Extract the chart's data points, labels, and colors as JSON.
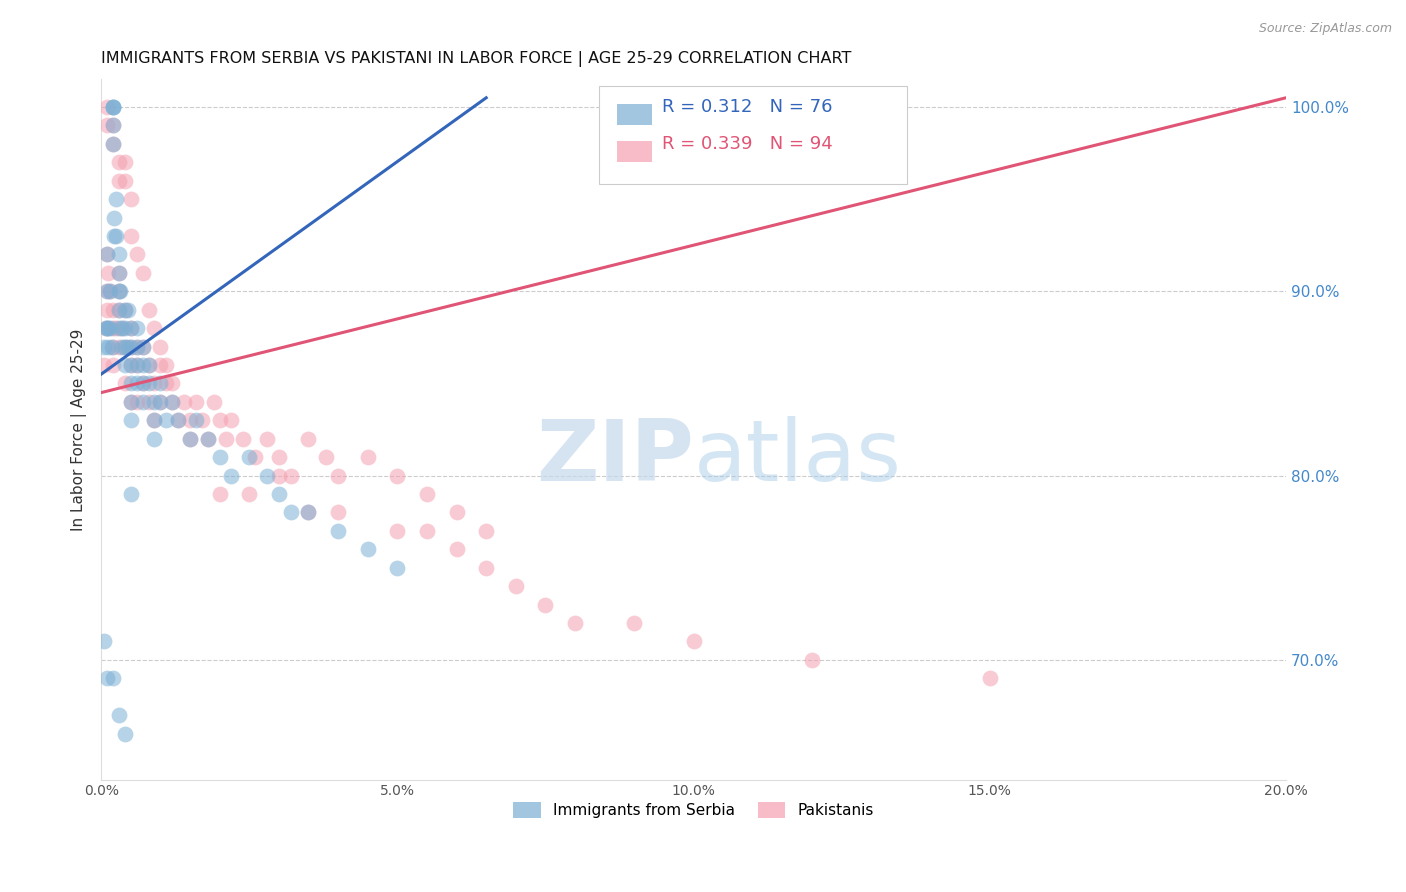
{
  "title": "IMMIGRANTS FROM SERBIA VS PAKISTANI IN LABOR FORCE | AGE 25-29 CORRELATION CHART",
  "source": "Source: ZipAtlas.com",
  "ylabel": "In Labor Force | Age 25-29",
  "serbia_R": 0.312,
  "serbia_N": 76,
  "pakistan_R": 0.339,
  "pakistan_N": 94,
  "serbia_color": "#7BAFD4",
  "pakistan_color": "#F4A0B0",
  "serbia_line_color": "#3366BB",
  "pakistan_line_color": "#E05575",
  "xlim": [
    0.0,
    0.2
  ],
  "ylim": [
    0.635,
    1.015
  ],
  "xtick_labels": [
    "0.0%",
    "",
    "5.0%",
    "",
    "10.0%",
    "",
    "15.0%",
    "",
    "20.0%"
  ],
  "xtick_vals": [
    0.0,
    0.025,
    0.05,
    0.075,
    0.1,
    0.125,
    0.15,
    0.175,
    0.2
  ],
  "xtick_display": [
    "0.0%",
    "5.0%",
    "10.0%",
    "15.0%",
    "20.0%"
  ],
  "xtick_display_vals": [
    0.0,
    0.05,
    0.1,
    0.15,
    0.2
  ],
  "ytick_vals": [
    0.7,
    0.8,
    0.9,
    1.0
  ],
  "ytick_labels": [
    "70.0%",
    "80.0%",
    "90.0%",
    "100.0%"
  ],
  "watermark_zip": "ZIP",
  "watermark_atlas": "atlas",
  "serbia_line_x": [
    0.0,
    0.065
  ],
  "serbia_line_y": [
    0.855,
    1.005
  ],
  "pakistan_line_x": [
    0.0,
    0.2
  ],
  "pakistan_line_y": [
    0.845,
    1.005
  ],
  "serbia_x": [
    0.0005,
    0.0008,
    0.001,
    0.001,
    0.001,
    0.0012,
    0.0012,
    0.0015,
    0.0015,
    0.0018,
    0.002,
    0.002,
    0.002,
    0.002,
    0.002,
    0.0022,
    0.0022,
    0.0025,
    0.0025,
    0.003,
    0.003,
    0.003,
    0.003,
    0.003,
    0.0032,
    0.0035,
    0.0035,
    0.004,
    0.004,
    0.004,
    0.004,
    0.0045,
    0.0045,
    0.005,
    0.005,
    0.005,
    0.005,
    0.005,
    0.005,
    0.006,
    0.006,
    0.006,
    0.006,
    0.007,
    0.007,
    0.007,
    0.007,
    0.008,
    0.008,
    0.009,
    0.009,
    0.009,
    0.01,
    0.01,
    0.011,
    0.012,
    0.013,
    0.015,
    0.016,
    0.018,
    0.02,
    0.022,
    0.025,
    0.028,
    0.03,
    0.032,
    0.035,
    0.04,
    0.045,
    0.05,
    0.0005,
    0.001,
    0.002,
    0.003,
    0.004,
    0.005
  ],
  "serbia_y": [
    0.87,
    0.88,
    0.88,
    0.9,
    0.92,
    0.88,
    0.87,
    0.9,
    0.88,
    0.87,
    1.0,
    1.0,
    1.0,
    0.99,
    0.98,
    0.94,
    0.93,
    0.95,
    0.93,
    0.92,
    0.91,
    0.9,
    0.89,
    0.88,
    0.9,
    0.88,
    0.87,
    0.89,
    0.88,
    0.87,
    0.86,
    0.89,
    0.87,
    0.88,
    0.87,
    0.86,
    0.85,
    0.84,
    0.83,
    0.88,
    0.87,
    0.86,
    0.85,
    0.87,
    0.86,
    0.85,
    0.84,
    0.86,
    0.85,
    0.84,
    0.83,
    0.82,
    0.85,
    0.84,
    0.83,
    0.84,
    0.83,
    0.82,
    0.83,
    0.82,
    0.81,
    0.8,
    0.81,
    0.8,
    0.79,
    0.78,
    0.78,
    0.77,
    0.76,
    0.75,
    0.71,
    0.69,
    0.69,
    0.67,
    0.66,
    0.79
  ],
  "pakistan_x": [
    0.0005,
    0.0008,
    0.001,
    0.001,
    0.001,
    0.0012,
    0.0015,
    0.002,
    0.002,
    0.002,
    0.002,
    0.0025,
    0.003,
    0.003,
    0.003,
    0.003,
    0.0035,
    0.004,
    0.004,
    0.004,
    0.005,
    0.005,
    0.005,
    0.005,
    0.006,
    0.006,
    0.006,
    0.007,
    0.007,
    0.008,
    0.008,
    0.009,
    0.009,
    0.01,
    0.01,
    0.011,
    0.012,
    0.013,
    0.014,
    0.015,
    0.016,
    0.017,
    0.018,
    0.019,
    0.02,
    0.021,
    0.022,
    0.024,
    0.026,
    0.028,
    0.03,
    0.032,
    0.035,
    0.038,
    0.04,
    0.045,
    0.05,
    0.055,
    0.06,
    0.065,
    0.001,
    0.001,
    0.002,
    0.002,
    0.003,
    0.003,
    0.004,
    0.004,
    0.005,
    0.005,
    0.006,
    0.007,
    0.008,
    0.009,
    0.01,
    0.011,
    0.012,
    0.015,
    0.02,
    0.025,
    0.03,
    0.035,
    0.04,
    0.05,
    0.055,
    0.06,
    0.065,
    0.07,
    0.075,
    0.08,
    0.09,
    0.1,
    0.12,
    0.15
  ],
  "pakistan_y": [
    0.86,
    0.88,
    0.89,
    0.9,
    0.92,
    0.91,
    0.9,
    0.89,
    0.88,
    0.87,
    0.86,
    0.88,
    0.91,
    0.9,
    0.89,
    0.87,
    0.88,
    0.89,
    0.87,
    0.85,
    0.88,
    0.87,
    0.86,
    0.84,
    0.87,
    0.86,
    0.84,
    0.87,
    0.85,
    0.86,
    0.84,
    0.85,
    0.83,
    0.86,
    0.84,
    0.85,
    0.84,
    0.83,
    0.84,
    0.83,
    0.84,
    0.83,
    0.82,
    0.84,
    0.83,
    0.82,
    0.83,
    0.82,
    0.81,
    0.82,
    0.81,
    0.8,
    0.82,
    0.81,
    0.8,
    0.81,
    0.8,
    0.79,
    0.78,
    0.77,
    1.0,
    0.99,
    0.99,
    0.98,
    0.97,
    0.96,
    0.97,
    0.96,
    0.95,
    0.93,
    0.92,
    0.91,
    0.89,
    0.88,
    0.87,
    0.86,
    0.85,
    0.82,
    0.79,
    0.79,
    0.8,
    0.78,
    0.78,
    0.77,
    0.77,
    0.76,
    0.75,
    0.74,
    0.73,
    0.72,
    0.72,
    0.71,
    0.7,
    0.69
  ]
}
